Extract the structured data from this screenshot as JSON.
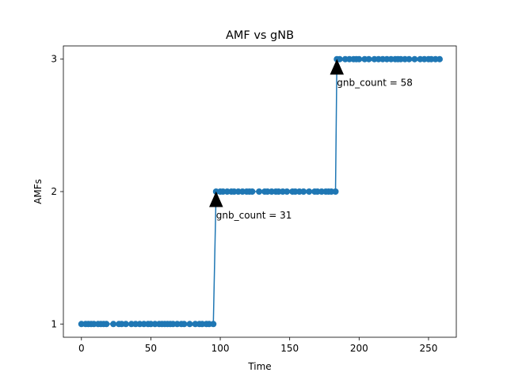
{
  "chart_data": {
    "type": "line",
    "title": "AMF vs gNB",
    "xlabel": "Time",
    "ylabel": "AMFs",
    "xlim": [
      -13,
      270
    ],
    "ylim": [
      0.9,
      3.1
    ],
    "xticks": [
      0,
      50,
      100,
      150,
      200,
      250
    ],
    "yticks": [
      1,
      2,
      3
    ],
    "grid": false,
    "series": [
      {
        "color": "#1f77b4",
        "x": [
          0,
          3,
          5,
          7,
          9,
          12,
          14,
          16,
          18,
          23,
          27,
          29,
          32,
          36,
          39,
          42,
          45,
          48,
          50,
          53,
          56,
          58,
          60,
          62,
          64,
          66,
          69,
          72,
          74,
          78,
          82,
          85,
          87,
          90,
          92,
          95,
          97,
          100,
          102,
          105,
          108,
          110,
          113,
          116,
          119,
          121,
          123,
          128,
          132,
          134,
          137,
          140,
          142,
          145,
          148,
          152,
          154,
          157,
          160,
          164,
          168,
          170,
          173,
          176,
          178,
          180,
          183,
          184,
          186,
          190,
          193,
          196,
          198,
          200,
          204,
          207,
          211,
          214,
          217,
          220,
          223,
          226,
          228,
          230,
          233,
          236,
          240,
          244,
          247,
          250,
          252,
          255,
          258
        ],
        "y": [
          1,
          1,
          1,
          1,
          1,
          1,
          1,
          1,
          1,
          1,
          1,
          1,
          1,
          1,
          1,
          1,
          1,
          1,
          1,
          1,
          1,
          1,
          1,
          1,
          1,
          1,
          1,
          1,
          1,
          1,
          1,
          1,
          1,
          1,
          1,
          1,
          2,
          2,
          2,
          2,
          2,
          2,
          2,
          2,
          2,
          2,
          2,
          2,
          2,
          2,
          2,
          2,
          2,
          2,
          2,
          2,
          2,
          2,
          2,
          2,
          2,
          2,
          2,
          2,
          2,
          2,
          2,
          3,
          3,
          3,
          3,
          3,
          3,
          3,
          3,
          3,
          3,
          3,
          3,
          3,
          3,
          3,
          3,
          3,
          3,
          3,
          3,
          3,
          3,
          3,
          3,
          3,
          3
        ]
      }
    ],
    "annotations": [
      {
        "text": "gnb_count = 31",
        "x": 97,
        "y": 2
      },
      {
        "text": "gnb_count = 58",
        "x": 184,
        "y": 3
      }
    ]
  }
}
